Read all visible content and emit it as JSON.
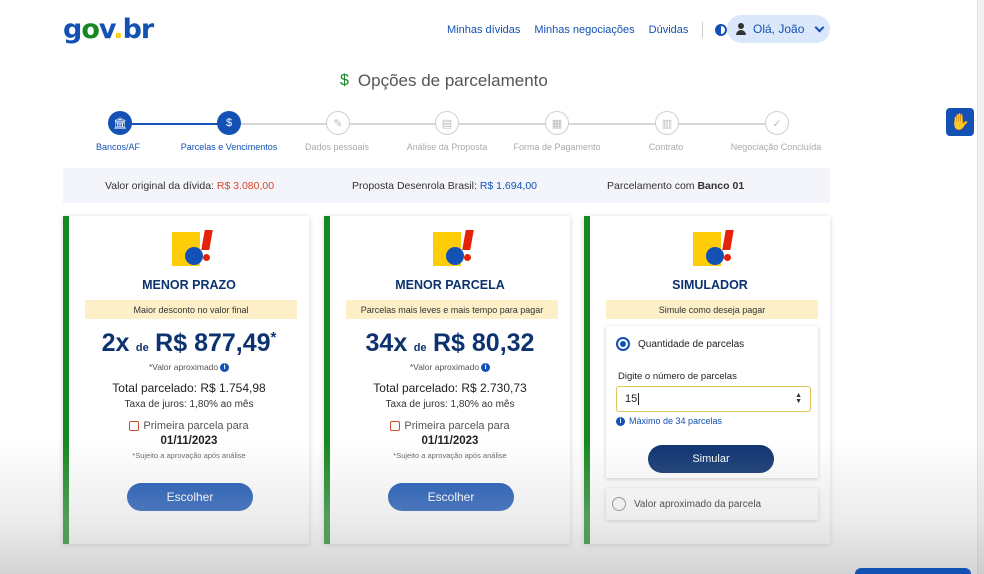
{
  "header": {
    "logo": {
      "g": "g",
      "o": "o",
      "v": "v",
      "dot": ".",
      "br": "br"
    },
    "nav": [
      "Minhas dívidas",
      "Minhas negociações",
      "Dúvidas"
    ],
    "user": "Olá, João"
  },
  "page_title": "Opções de parcelamento",
  "stepper": {
    "steps": [
      {
        "label": "Bancos/AF",
        "state": "done",
        "icon": "bank-icon"
      },
      {
        "label": "Parcelas e Vencimentos",
        "state": "active",
        "icon": "money-hand-icon"
      },
      {
        "label": "Dados pessoais",
        "state": "pending",
        "icon": "edit-icon"
      },
      {
        "label": "Análise da Proposta",
        "state": "pending",
        "icon": "document-icon"
      },
      {
        "label": "Forma de Pagamento",
        "state": "pending",
        "icon": "qr-icon"
      },
      {
        "label": "Contrato",
        "state": "pending",
        "icon": "contract-icon"
      },
      {
        "label": "Negociação Concluída",
        "state": "pending",
        "icon": "check-icon"
      }
    ]
  },
  "info_bar": {
    "original_label": "Valor original da dívida: ",
    "original_value": "R$ 3.080,00",
    "proposal_label": "Proposta Desenrola Brasil: ",
    "proposal_value": "R$ 1.694,00",
    "bank_label": "Parcelamento com ",
    "bank_value": "Banco 01"
  },
  "cards": [
    {
      "title": "MENOR PRAZO",
      "banner": "Maior desconto no valor final",
      "count": "2x",
      "de": "de",
      "value": "R$ 877,49",
      "star": "*",
      "approx": "*Valor aproximado",
      "total": "Total parcelado: R$ 1.754,98",
      "taxa": "Taxa de juros: 1,80% ao mês",
      "first_label": "Primeira parcela para",
      "date": "01/11/2023",
      "note": "*Sujeito a aprovação após análise",
      "button": "Escolher"
    },
    {
      "title": "MENOR PARCELA",
      "banner": "Parcelas mais leves e mais tempo para pagar",
      "count": "34x",
      "de": "de",
      "value": "R$ 80,32",
      "star": "",
      "approx": "*Valor aproximado",
      "total": "Total parcelado: R$ 2.730,73",
      "taxa": "Taxa de juros: 1,80% ao mês",
      "first_label": "Primeira parcela para",
      "date": "01/11/2023",
      "note": "*Sujeito a aprovação após análise",
      "button": "Escolher"
    }
  ],
  "simulator": {
    "title": "SIMULADOR",
    "banner": "Simule como deseja pagar",
    "option1": "Quantidade de parcelas",
    "input_label": "Digite o número de parcelas",
    "input_value": "15",
    "max_note": "Máximo de 34 parcelas",
    "button": "Simular",
    "option2": "Valor aproximado da parcela"
  },
  "colors": {
    "primary": "#1351b4",
    "dark": "#0c326f",
    "green": "#168821",
    "red": "#d04a2b",
    "banner": "#fdefc8"
  }
}
